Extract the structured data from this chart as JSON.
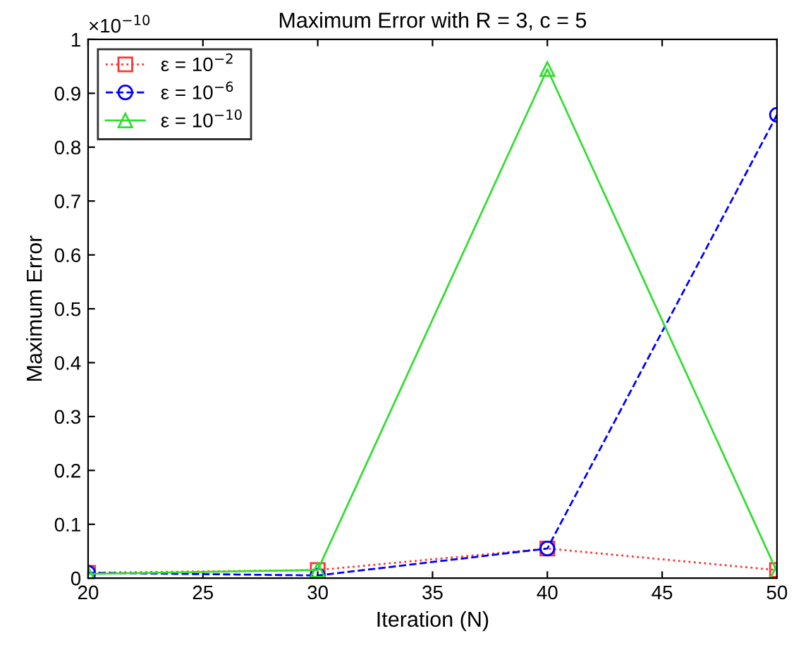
{
  "chart_data": {
    "type": "line",
    "title": "Maximum Error with R = 3, c = 5",
    "xlabel": "Iteration (N)",
    "ylabel": "Maximum Error",
    "annotations": [
      "×10$^{−10}$"
    ],
    "x": [
      20,
      30,
      40,
      50
    ],
    "series": [
      {
        "name": "ε = 10$^{−2}$",
        "color": "#ff3333",
        "marker": "square",
        "line_style": "dotted",
        "values": [
          0.01,
          0.015,
          0.055,
          0.015
        ]
      },
      {
        "name": "ε = 10$^{−6}$",
        "color": "#0000ff",
        "marker": "circle",
        "line_style": "dashed",
        "values": [
          0.01,
          0.005,
          0.055,
          0.86
        ]
      },
      {
        "name": "ε = 10$^{−10}$",
        "color": "#33dd33",
        "marker": "triangle",
        "line_style": "solid",
        "values": [
          0.008,
          0.015,
          0.945,
          0.012
        ]
      }
    ],
    "xlim": [
      20,
      50
    ],
    "xticks": [
      20,
      25,
      30,
      35,
      40,
      45,
      50
    ],
    "ylim": [
      0,
      1
    ],
    "yticks": [
      0,
      0.1,
      0.2,
      0.3,
      0.4,
      0.5,
      0.6,
      0.7,
      0.8,
      0.9,
      1
    ],
    "grid": false,
    "legend": "top left"
  }
}
